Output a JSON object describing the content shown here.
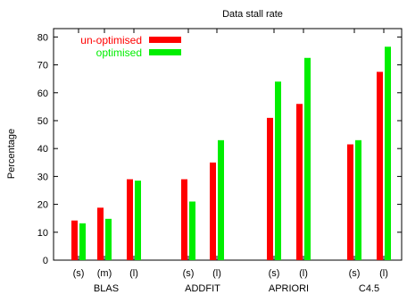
{
  "chart_data": {
    "type": "bar",
    "title": "Data stall rate",
    "xlabel": "",
    "ylabel": "Percentage",
    "ylim": [
      0,
      83
    ],
    "yticks": [
      0,
      10,
      20,
      30,
      40,
      50,
      60,
      70,
      80
    ],
    "legend_position": "top-left",
    "categories": [
      {
        "label": "(s)",
        "group": "BLAS"
      },
      {
        "label": "(m)",
        "group": "BLAS"
      },
      {
        "label": "(l)",
        "group": "BLAS"
      },
      {
        "label": "(s)",
        "group": "ADDFIT"
      },
      {
        "label": "(l)",
        "group": "ADDFIT"
      },
      {
        "label": "(s)",
        "group": "APRIORI"
      },
      {
        "label": "(l)",
        "group": "APRIORI"
      },
      {
        "label": "(s)",
        "group": "C4.5"
      },
      {
        "label": "(l)",
        "group": "C4.5"
      }
    ],
    "groups": [
      "BLAS",
      "ADDFIT",
      "APRIORI",
      "C4.5"
    ],
    "series": [
      {
        "name": "un-optimised",
        "color": "#ff0000",
        "values": [
          14.2,
          18.8,
          29,
          29,
          35,
          51,
          56,
          41.5,
          67.5
        ]
      },
      {
        "name": "optimised",
        "color": "#00ee00",
        "values": [
          13.2,
          14.8,
          28.5,
          21,
          43,
          64,
          72.5,
          43,
          76.5
        ]
      }
    ]
  }
}
